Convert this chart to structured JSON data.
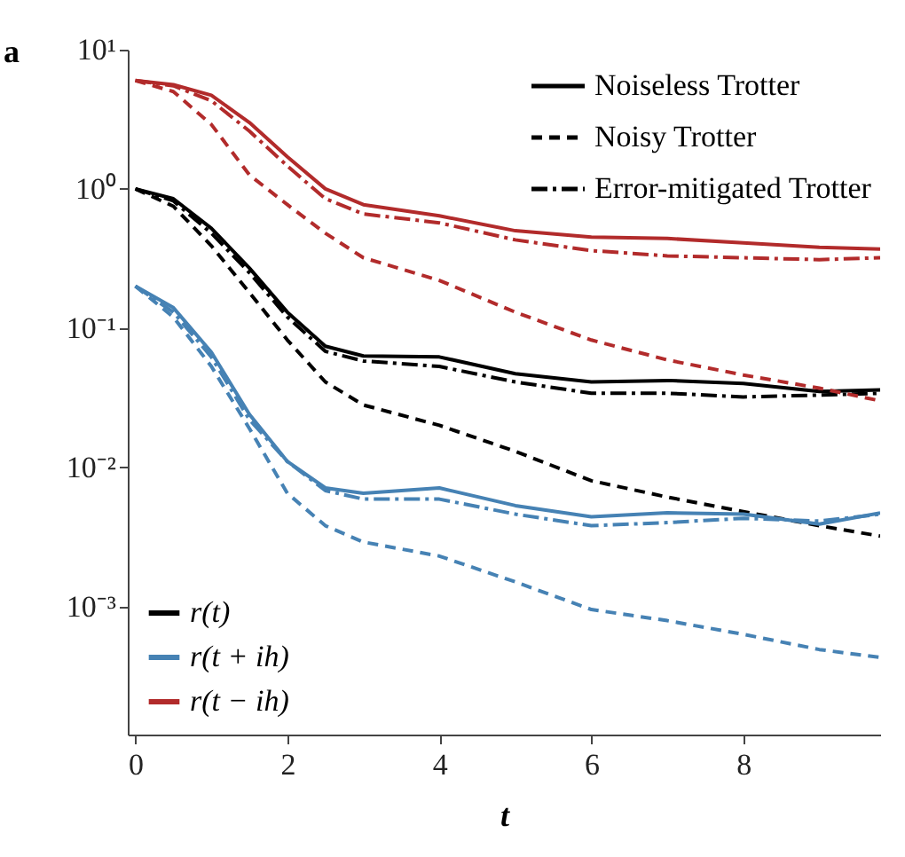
{
  "chart_data": {
    "type": "line",
    "annotations": [
      "a"
    ],
    "xlabel": "t",
    "log": "y",
    "xlim": [
      -0.1,
      9.8
    ],
    "xticks": [
      0,
      2,
      4,
      6,
      8
    ],
    "ylim": [
      0.00012,
      10
    ],
    "yticks": [
      {
        "value": 10,
        "label": "10¹"
      },
      {
        "value": 1,
        "label": "10⁰"
      },
      {
        "value": 0.1,
        "label": "10⁻¹"
      },
      {
        "value": 0.01,
        "label": "10⁻²"
      },
      {
        "value": 0.001,
        "label": "10⁻³"
      }
    ],
    "grid": false,
    "legend": [
      "top right",
      "bottom left"
    ],
    "marker": "none",
    "x": [
      0,
      0.5,
      1,
      1.5,
      2,
      2.5,
      3,
      4,
      5,
      6,
      7,
      8,
      9,
      9.8
    ],
    "series": [
      {
        "name": "r(t)",
        "color": "#000000",
        "line_style": "solid",
        "values": [
          1.0,
          0.85,
          0.52,
          0.27,
          0.13,
          0.074,
          0.063,
          0.062,
          0.047,
          0.041,
          0.042,
          0.04,
          0.035,
          0.036
        ]
      },
      {
        "color": "#000000",
        "line_style": "dashed",
        "values": [
          1.0,
          0.75,
          0.39,
          0.18,
          0.082,
          0.041,
          0.028,
          0.02,
          0.013,
          0.008,
          0.0061,
          0.0048,
          0.0038,
          0.0032
        ]
      },
      {
        "color": "#000000",
        "line_style": "dashdot",
        "values": [
          1.0,
          0.82,
          0.48,
          0.25,
          0.12,
          0.068,
          0.058,
          0.053,
          0.041,
          0.034,
          0.034,
          0.032,
          0.033,
          0.034
        ]
      },
      {
        "name": "r(t + ih)",
        "color": "#4682b4",
        "line_style": "solid",
        "values": [
          0.2,
          0.14,
          0.067,
          0.024,
          0.011,
          0.0071,
          0.0065,
          0.0071,
          0.0053,
          0.0044,
          0.0047,
          0.0046,
          0.0039,
          0.0047
        ]
      },
      {
        "color": "#4682b4",
        "line_style": "dashed",
        "values": [
          0.2,
          0.12,
          0.053,
          0.019,
          0.0065,
          0.0038,
          0.0029,
          0.0023,
          0.0015,
          0.00095,
          0.00079,
          0.00063,
          0.00049,
          0.00043
        ]
      },
      {
        "color": "#4682b4",
        "line_style": "dashdot",
        "values": [
          0.2,
          0.13,
          0.062,
          0.022,
          0.011,
          0.0068,
          0.0059,
          0.0059,
          0.0046,
          0.0038,
          0.004,
          0.0043,
          0.0041,
          0.0046
        ]
      },
      {
        "name": "r(t − ih)",
        "color": "#b22b2b",
        "line_style": "solid",
        "values": [
          6.0,
          5.6,
          4.7,
          3.0,
          1.7,
          1.0,
          0.77,
          0.64,
          0.5,
          0.45,
          0.44,
          0.41,
          0.38,
          0.37
        ]
      },
      {
        "color": "#b22b2b",
        "line_style": "dashed",
        "values": [
          6.0,
          5.0,
          2.9,
          1.26,
          0.77,
          0.48,
          0.32,
          0.22,
          0.13,
          0.082,
          0.059,
          0.046,
          0.037,
          0.03
        ]
      },
      {
        "color": "#b22b2b",
        "line_style": "dashdot",
        "values": [
          6.0,
          5.5,
          4.3,
          2.6,
          1.46,
          0.85,
          0.66,
          0.57,
          0.43,
          0.36,
          0.33,
          0.32,
          0.31,
          0.32
        ]
      },
      {
        "name": "Noiseless Trotter",
        "color": "#000000",
        "line_style": "solid",
        "values": [
          null,
          null,
          null,
          null,
          null,
          null,
          null,
          null,
          null,
          null,
          null,
          null,
          null,
          null
        ]
      },
      {
        "name": "Noisy Trotter",
        "color": "#000000",
        "line_style": "dashed",
        "values": [
          null,
          null,
          null,
          null,
          null,
          null,
          null,
          null,
          null,
          null,
          null,
          null,
          null,
          null
        ]
      },
      {
        "name": "Error-mitigated Trotter",
        "color": "#000000",
        "line_style": "dashdot",
        "values": [
          null,
          null,
          null,
          null,
          null,
          null,
          null,
          null,
          null,
          null,
          null,
          null,
          null,
          null
        ]
      }
    ]
  }
}
